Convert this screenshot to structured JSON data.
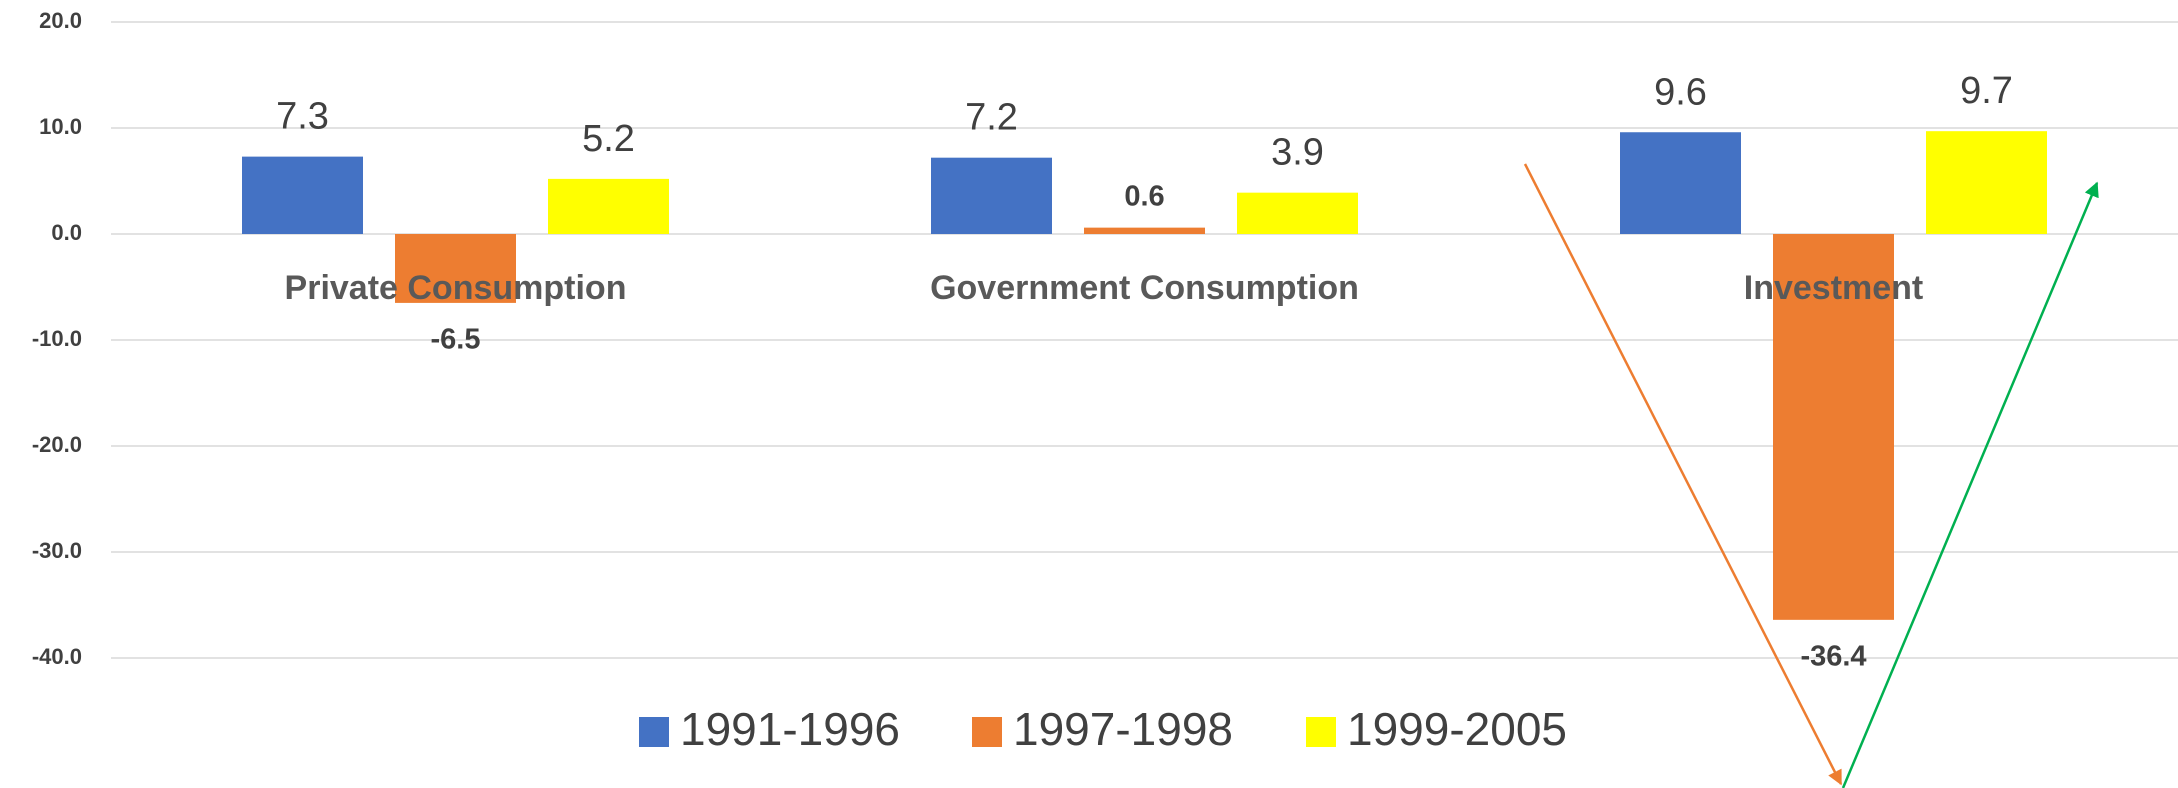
{
  "chart_data": {
    "type": "bar",
    "categories": [
      "Private Consumption",
      "Government Consumption",
      "Investment"
    ],
    "series": [
      {
        "name": "1991-1996",
        "color": "#4472c4",
        "values": [
          7.3,
          7.2,
          9.6
        ]
      },
      {
        "name": "1997-1998",
        "color": "#ed7d31",
        "values": [
          -6.5,
          0.6,
          -36.4
        ]
      },
      {
        "name": "1999-2005",
        "color": "#ffff00",
        "values": [
          5.2,
          3.9,
          9.7
        ]
      }
    ],
    "ylim": [
      -40,
      20
    ],
    "yticks": [
      {
        "value": -40,
        "label": "-40.0"
      },
      {
        "value": -30,
        "label": "-30.0"
      },
      {
        "value": -20,
        "label": "-20.0"
      },
      {
        "value": -10,
        "label": "-10.0"
      },
      {
        "value": 0,
        "label": "0.0"
      },
      {
        "value": 10,
        "label": "10.0"
      },
      {
        "value": 20,
        "label": "20.0"
      }
    ],
    "grid": true
  }
}
